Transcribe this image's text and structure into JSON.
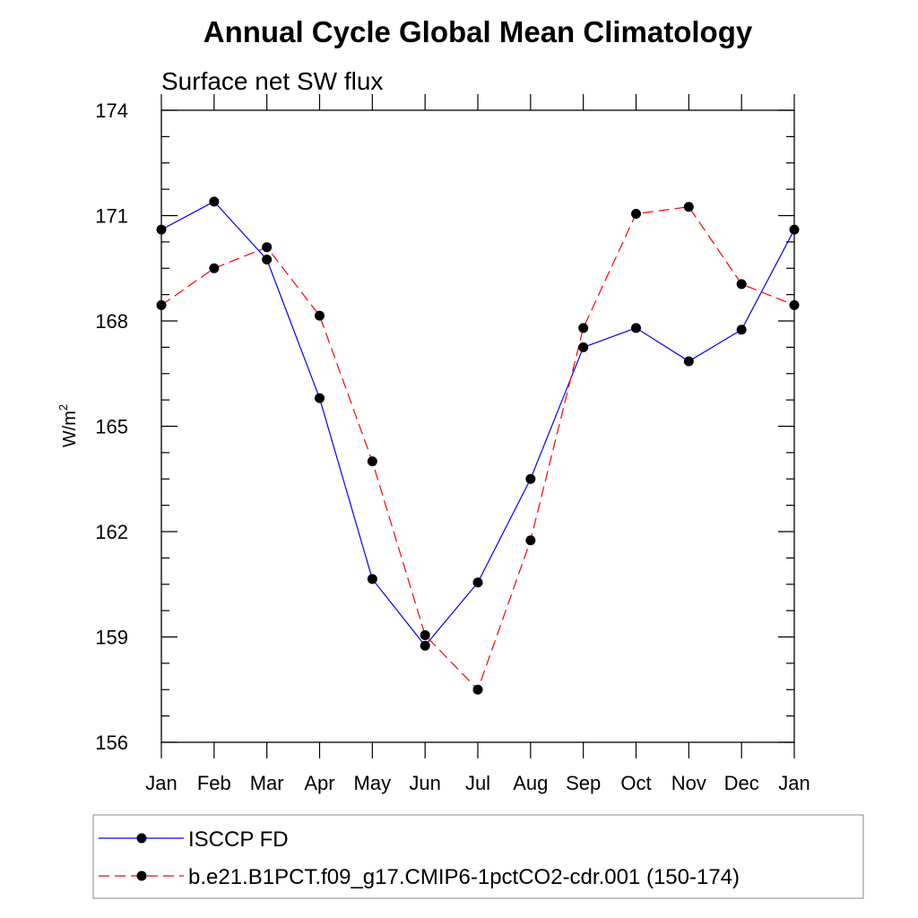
{
  "chart_data": {
    "type": "line",
    "title": "Annual Cycle Global Mean Climatology",
    "subtitle": "Surface net SW flux",
    "ylabel": "W/m",
    "ylabel_superscript": "2",
    "xlabel": "",
    "categories": [
      "Jan",
      "Feb",
      "Mar",
      "Apr",
      "May",
      "Jun",
      "Jul",
      "Aug",
      "Sep",
      "Oct",
      "Nov",
      "Dec",
      "Jan"
    ],
    "ylim": [
      156,
      174
    ],
    "yticks": [
      156,
      159,
      162,
      165,
      168,
      171,
      174
    ],
    "ytick_labels": [
      "156",
      "159",
      "162",
      "165",
      "168",
      "171",
      "174"
    ],
    "series": [
      {
        "name": "ISCCP FD",
        "color": "#0000ff",
        "dash": "solid",
        "values": [
          170.6,
          171.4,
          169.75,
          165.8,
          160.65,
          158.75,
          160.55,
          163.5,
          167.25,
          167.8,
          166.85,
          167.75,
          170.6
        ]
      },
      {
        "name": "b.e21.B1PCT.f09_g17.CMIP6-1pctCO2-cdr.001 (150-174)",
        "color": "#ff0000",
        "dash": "dashed",
        "values": [
          168.45,
          169.5,
          170.1,
          168.15,
          164.0,
          159.05,
          157.5,
          161.75,
          167.8,
          171.05,
          171.25,
          169.05,
          168.45
        ]
      }
    ],
    "legend_position": "bottom"
  }
}
